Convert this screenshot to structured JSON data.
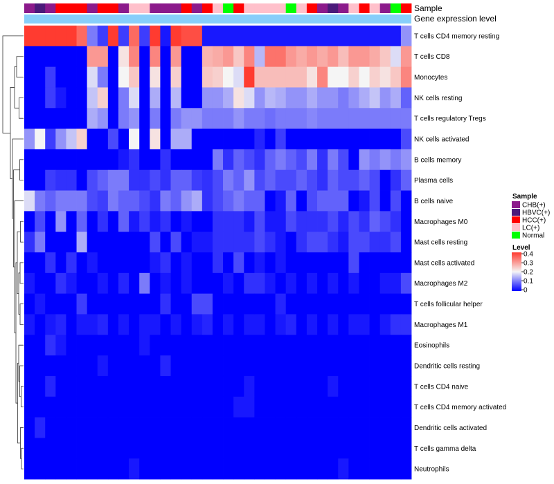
{
  "chart_data": {
    "type": "heatmap",
    "title": "",
    "annotation_labels": [
      "Sample",
      "Gene expression level"
    ],
    "rows": [
      "T cells CD4 memory resting",
      "T cells CD8",
      "Monocytes",
      "NK cells resting",
      "T cells regulatory  Tregs",
      "NK cells activated",
      "B cells memory",
      "Plasma cells",
      "B cells naive",
      "Macrophages M0",
      "Mast cells resting",
      "Mast cells activated",
      "Macrophages M2",
      "T cells follicular helper",
      "Macrophages M1",
      "Eosinophils",
      "Dendritic cells resting",
      "T cells CD4 naive",
      "T cells CD4 memory activated",
      "Dendritic cells activated",
      "T cells gamma delta",
      "Neutrophils"
    ],
    "sample_groups": [
      "CHB(+)",
      "HBVC(+)",
      "CHB(+)",
      "HCC(+)",
      "HCC(+)",
      "HCC(+)",
      "CHB(+)",
      "HCC(+)",
      "HCC(+)",
      "CHB(+)",
      "LC(+)",
      "LC(+)",
      "CHB(+)",
      "CHB(+)",
      "CHB(+)",
      "HCC(+)",
      "CHB(+)",
      "HCC(+)",
      "LC(+)",
      "Normal",
      "HCC(+)",
      "LC(+)",
      "LC(+)",
      "LC(+)",
      "LC(+)",
      "Normal",
      "LC(+)",
      "HCC(+)",
      "CHB(+)",
      "HBVC(+)",
      "CHB(+)",
      "LC(+)",
      "HCC(+)",
      "LC(+)",
      "CHB(+)",
      "Normal",
      "HCC(+)"
    ],
    "legend": {
      "sample_title": "Sample",
      "groups": [
        {
          "name": "CHB(+)",
          "color": "#8B1A8B"
        },
        {
          "name": "HBVC(+)",
          "color": "#4B1A7A"
        },
        {
          "name": "HCC(+)",
          "color": "#FF0000"
        },
        {
          "name": "LC(+)",
          "color": "#FFC0CB"
        },
        {
          "name": "Normal",
          "color": "#00FF00"
        }
      ],
      "level_title": "Level",
      "level_ticks": [
        "0.4",
        "0.3",
        "0.2",
        "0.1",
        "0"
      ],
      "level_range": [
        0,
        0.4
      ]
    },
    "colors": {
      "low": "#0000FF",
      "mid": "#F5F5F5",
      "high": "#FF3B30",
      "annotation_bar": "#87CEFA"
    },
    "values": [
      [
        0.4,
        0.4,
        0.4,
        0.4,
        0.4,
        0.35,
        0.1,
        0.05,
        0.4,
        0.05,
        0.35,
        0.05,
        0.4,
        0.02,
        0.4,
        0.38,
        0.38,
        0.02,
        0.02,
        0.02,
        0.02,
        0.02,
        0.02,
        0.02,
        0.02,
        0.02,
        0.02,
        0.02,
        0.02,
        0.02,
        0.02,
        0.02,
        0.02,
        0.02,
        0.02,
        0.02,
        0.12
      ],
      [
        0.0,
        0.0,
        0.0,
        0.0,
        0.0,
        0.0,
        0.3,
        0.3,
        0.0,
        0.22,
        0.32,
        0.0,
        0.32,
        0.0,
        0.3,
        0.0,
        0.0,
        0.27,
        0.28,
        0.3,
        0.25,
        0.32,
        0.15,
        0.34,
        0.34,
        0.3,
        0.28,
        0.3,
        0.28,
        0.3,
        0.26,
        0.3,
        0.3,
        0.28,
        0.25,
        0.18,
        0.3
      ],
      [
        0.0,
        0.0,
        0.05,
        0.0,
        0.0,
        0.0,
        0.18,
        0.1,
        0.0,
        0.2,
        0.25,
        0.0,
        0.22,
        0.0,
        0.24,
        0.0,
        0.0,
        0.25,
        0.24,
        0.2,
        0.18,
        0.4,
        0.26,
        0.26,
        0.26,
        0.26,
        0.26,
        0.22,
        0.32,
        0.2,
        0.2,
        0.24,
        0.2,
        0.24,
        0.22,
        0.25,
        0.32
      ],
      [
        0.0,
        0.0,
        0.05,
        0.02,
        0.0,
        0.0,
        0.16,
        0.24,
        0.0,
        0.1,
        0.18,
        0.0,
        0.14,
        0.0,
        0.15,
        0.0,
        0.0,
        0.12,
        0.12,
        0.14,
        0.22,
        0.18,
        0.12,
        0.15,
        0.14,
        0.12,
        0.12,
        0.14,
        0.12,
        0.12,
        0.1,
        0.12,
        0.14,
        0.16,
        0.12,
        0.14,
        0.08
      ],
      [
        0.0,
        0.0,
        0.0,
        0.0,
        0.0,
        0.0,
        0.14,
        0.12,
        0.0,
        0.1,
        0.12,
        0.0,
        0.1,
        0.0,
        0.1,
        0.12,
        0.12,
        0.1,
        0.1,
        0.1,
        0.12,
        0.1,
        0.1,
        0.09,
        0.1,
        0.1,
        0.1,
        0.11,
        0.1,
        0.1,
        0.1,
        0.1,
        0.1,
        0.1,
        0.1,
        0.1,
        0.1
      ],
      [
        0.12,
        0.2,
        0.05,
        0.12,
        0.16,
        0.24,
        0.0,
        0.0,
        0.06,
        0.0,
        0.2,
        0.0,
        0.22,
        0.0,
        0.14,
        0.14,
        0.0,
        0.0,
        0.0,
        0.0,
        0.0,
        0.0,
        0.03,
        0.0,
        0.05,
        0.0,
        0.0,
        0.0,
        0.0,
        0.0,
        0.0,
        0.0,
        0.0,
        0.0,
        0.0,
        0.0,
        0.06
      ],
      [
        0.0,
        0.0,
        0.0,
        0.0,
        0.0,
        0.0,
        0.0,
        0.0,
        0.0,
        0.02,
        0.04,
        0.0,
        0.0,
        0.04,
        0.0,
        0.0,
        0.0,
        0.0,
        0.1,
        0.04,
        0.08,
        0.06,
        0.04,
        0.08,
        0.1,
        0.08,
        0.06,
        0.1,
        0.04,
        0.1,
        0.06,
        0.0,
        0.12,
        0.1,
        0.12,
        0.1,
        0.12
      ],
      [
        0.0,
        0.0,
        0.05,
        0.04,
        0.04,
        0.0,
        0.06,
        0.08,
        0.1,
        0.1,
        0.04,
        0.04,
        0.06,
        0.04,
        0.08,
        0.08,
        0.05,
        0.04,
        0.06,
        0.1,
        0.08,
        0.12,
        0.06,
        0.08,
        0.06,
        0.06,
        0.08,
        0.06,
        0.04,
        0.08,
        0.06,
        0.06,
        0.08,
        0.06,
        0.0,
        0.04,
        0.08
      ],
      [
        0.18,
        0.1,
        0.08,
        0.1,
        0.1,
        0.1,
        0.06,
        0.05,
        0.1,
        0.08,
        0.08,
        0.06,
        0.04,
        0.1,
        0.08,
        0.12,
        0.14,
        0.04,
        0.06,
        0.08,
        0.1,
        0.08,
        0.08,
        0.0,
        0.02,
        0.08,
        0.0,
        0.06,
        0.08,
        0.08,
        0.08,
        0.0,
        0.02,
        0.06,
        0.0,
        0.06,
        0.0
      ],
      [
        0.0,
        0.06,
        0.0,
        0.12,
        0.0,
        0.08,
        0.0,
        0.04,
        0.0,
        0.08,
        0.02,
        0.05,
        0.02,
        0.04,
        0.0,
        0.02,
        0.0,
        0.0,
        0.04,
        0.04,
        0.04,
        0.02,
        0.06,
        0.02,
        0.02,
        0.06,
        0.04,
        0.04,
        0.04,
        0.06,
        0.03,
        0.06,
        0.04,
        0.08,
        0.06,
        0.04,
        0.0
      ],
      [
        0.04,
        0.1,
        0.0,
        0.0,
        0.0,
        0.14,
        0.0,
        0.0,
        0.0,
        0.0,
        0.0,
        0.0,
        0.06,
        0.0,
        0.06,
        0.0,
        0.02,
        0.02,
        0.04,
        0.04,
        0.04,
        0.04,
        0.06,
        0.04,
        0.02,
        0.0,
        0.04,
        0.06,
        0.06,
        0.04,
        0.02,
        0.06,
        0.06,
        0.04,
        0.04,
        0.06,
        0.0
      ],
      [
        0.0,
        0.0,
        0.04,
        0.0,
        0.04,
        0.0,
        0.02,
        0.0,
        0.0,
        0.0,
        0.0,
        0.0,
        0.02,
        0.04,
        0.0,
        0.02,
        0.0,
        0.0,
        0.04,
        0.0,
        0.06,
        0.0,
        0.02,
        0.0,
        0.02,
        0.0,
        0.0,
        0.0,
        0.0,
        0.0,
        0.0,
        0.06,
        0.0,
        0.0,
        0.0,
        0.0,
        0.0
      ],
      [
        0.02,
        0.0,
        0.0,
        0.04,
        0.02,
        0.0,
        0.0,
        0.02,
        0.0,
        0.03,
        0.0,
        0.1,
        0.0,
        0.02,
        0.0,
        0.02,
        0.0,
        0.0,
        0.0,
        0.02,
        0.0,
        0.04,
        0.04,
        0.02,
        0.0,
        0.02,
        0.0,
        0.02,
        0.0,
        0.02,
        0.0,
        0.02,
        0.0,
        0.0,
        0.02,
        0.02,
        0.06
      ],
      [
        0.0,
        0.02,
        0.0,
        0.0,
        0.0,
        0.05,
        0.0,
        0.0,
        0.0,
        0.0,
        0.0,
        0.0,
        0.0,
        0.04,
        0.0,
        0.0,
        0.06,
        0.06,
        0.0,
        0.0,
        0.0,
        0.0,
        0.0,
        0.0,
        0.03,
        0.0,
        0.0,
        0.0,
        0.0,
        0.0,
        0.0,
        0.0,
        0.0,
        0.0,
        0.0,
        0.0,
        0.0
      ],
      [
        0.02,
        0.0,
        0.02,
        0.03,
        0.0,
        0.02,
        0.02,
        0.03,
        0.0,
        0.02,
        0.0,
        0.02,
        0.02,
        0.0,
        0.02,
        0.0,
        0.02,
        0.03,
        0.0,
        0.02,
        0.0,
        0.02,
        0.02,
        0.0,
        0.02,
        0.03,
        0.0,
        0.02,
        0.0,
        0.02,
        0.0,
        0.02,
        0.02,
        0.0,
        0.02,
        0.04,
        0.04
      ],
      [
        0.0,
        0.0,
        0.04,
        0.02,
        0.0,
        0.0,
        0.0,
        0.0,
        0.0,
        0.0,
        0.0,
        0.02,
        0.0,
        0.0,
        0.0,
        0.0,
        0.0,
        0.0,
        0.0,
        0.0,
        0.0,
        0.0,
        0.0,
        0.0,
        0.0,
        0.0,
        0.0,
        0.0,
        0.0,
        0.0,
        0.0,
        0.0,
        0.0,
        0.0,
        0.0,
        0.0,
        0.0
      ],
      [
        0.0,
        0.0,
        0.0,
        0.0,
        0.0,
        0.0,
        0.0,
        0.02,
        0.0,
        0.0,
        0.0,
        0.0,
        0.0,
        0.03,
        0.0,
        0.0,
        0.0,
        0.0,
        0.0,
        0.0,
        0.0,
        0.0,
        0.0,
        0.0,
        0.0,
        0.0,
        0.0,
        0.0,
        0.0,
        0.0,
        0.0,
        0.0,
        0.0,
        0.0,
        0.0,
        0.0,
        0.0
      ],
      [
        0.0,
        0.0,
        0.03,
        0.0,
        0.0,
        0.0,
        0.0,
        0.0,
        0.0,
        0.0,
        0.0,
        0.0,
        0.0,
        0.0,
        0.0,
        0.0,
        0.0,
        0.0,
        0.0,
        0.0,
        0.0,
        0.02,
        0.0,
        0.0,
        0.0,
        0.0,
        0.0,
        0.0,
        0.0,
        0.02,
        0.0,
        0.0,
        0.0,
        0.0,
        0.0,
        0.0,
        0.0
      ],
      [
        0.0,
        0.0,
        0.0,
        0.0,
        0.0,
        0.0,
        0.0,
        0.0,
        0.0,
        0.0,
        0.0,
        0.0,
        0.0,
        0.0,
        0.0,
        0.0,
        0.0,
        0.0,
        0.0,
        0.0,
        0.02,
        0.02,
        0.0,
        0.0,
        0.0,
        0.0,
        0.0,
        0.0,
        0.0,
        0.0,
        0.0,
        0.0,
        0.0,
        0.0,
        0.0,
        0.0,
        0.0
      ],
      [
        0.0,
        0.03,
        0.0,
        0.0,
        0.0,
        0.0,
        0.0,
        0.0,
        0.0,
        0.0,
        0.0,
        0.0,
        0.0,
        0.0,
        0.0,
        0.0,
        0.0,
        0.0,
        0.0,
        0.0,
        0.0,
        0.0,
        0.0,
        0.0,
        0.0,
        0.0,
        0.0,
        0.0,
        0.0,
        0.0,
        0.0,
        0.0,
        0.0,
        0.0,
        0.0,
        0.0,
        0.0
      ],
      [
        0.0,
        0.0,
        0.0,
        0.0,
        0.0,
        0.0,
        0.0,
        0.0,
        0.0,
        0.0,
        0.0,
        0.0,
        0.0,
        0.0,
        0.0,
        0.0,
        0.0,
        0.0,
        0.0,
        0.0,
        0.0,
        0.0,
        0.0,
        0.0,
        0.0,
        0.0,
        0.0,
        0.0,
        0.0,
        0.0,
        0.0,
        0.0,
        0.0,
        0.0,
        0.0,
        0.0,
        0.0
      ],
      [
        0.0,
        0.0,
        0.0,
        0.0,
        0.0,
        0.0,
        0.0,
        0.0,
        0.0,
        0.0,
        0.02,
        0.0,
        0.0,
        0.0,
        0.0,
        0.0,
        0.0,
        0.0,
        0.0,
        0.0,
        0.0,
        0.0,
        0.0,
        0.0,
        0.0,
        0.0,
        0.0,
        0.0,
        0.0,
        0.0,
        0.02,
        0.0,
        0.0,
        0.0,
        0.0,
        0.0,
        0.0
      ]
    ]
  }
}
